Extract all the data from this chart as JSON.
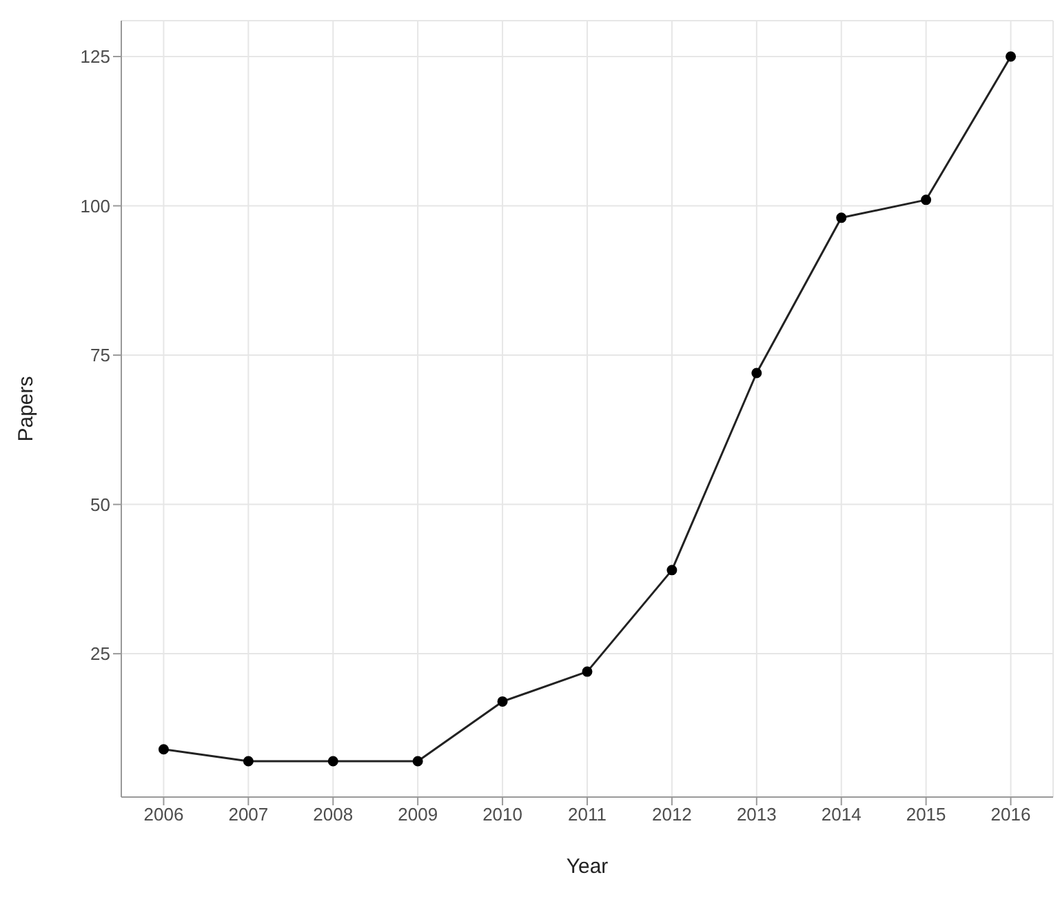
{
  "chart_data": {
    "type": "line",
    "xlabel": "Year",
    "ylabel": "Papers",
    "x": [
      2006,
      2007,
      2008,
      2009,
      2010,
      2011,
      2012,
      2013,
      2014,
      2015,
      2016
    ],
    "series": [
      {
        "color": "#222222",
        "values": [
          9,
          7,
          7,
          7,
          17,
          22,
          39,
          72,
          98,
          101,
          125
        ]
      }
    ],
    "xlim": [
      2005.5,
      2016.5
    ],
    "xticks": [
      2006,
      2007,
      2008,
      2009,
      2010,
      2011,
      2012,
      2013,
      2014,
      2015,
      2016
    ],
    "ylim": [
      1,
      131
    ],
    "yticks": [
      25,
      50,
      75,
      100,
      125
    ],
    "grid": true,
    "marker": "circle",
    "line_style": "solid",
    "legend": false
  }
}
